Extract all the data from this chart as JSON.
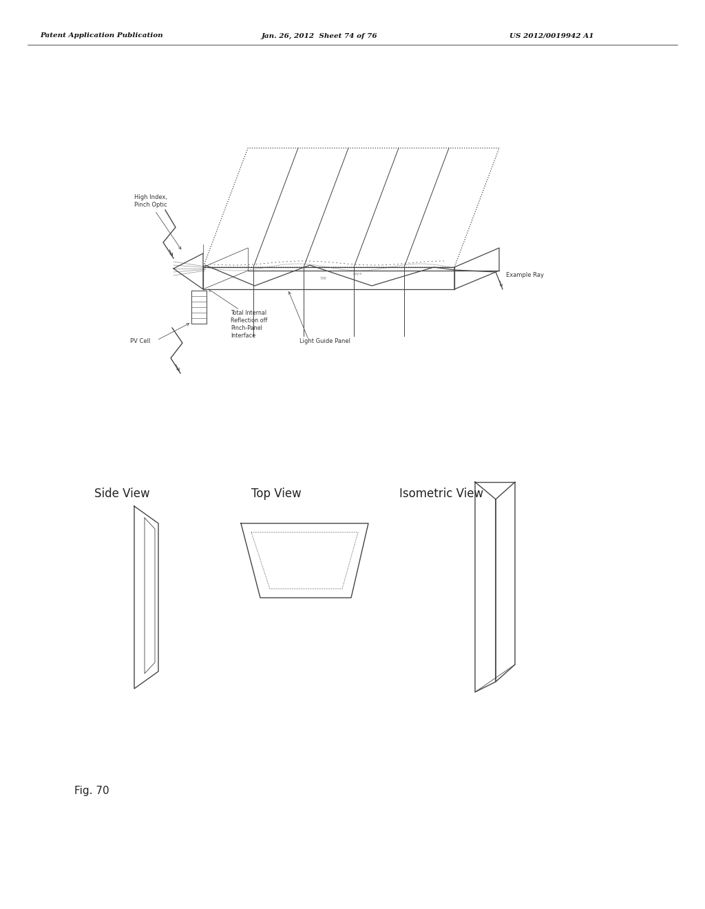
{
  "bg_color": "#ffffff",
  "line_color": "#444444",
  "header_left": "Patent Application Publication",
  "header_mid": "Jan. 26, 2012  Sheet 74 of 76",
  "header_right": "US 2012/0019942 A1",
  "fig_label": "Fig. 70",
  "label_high_index": "High Index,\nPinch Optic",
  "label_pv_cell": "PV Cell",
  "label_total_internal": "Total Internal\nReflection off\nPinch-Panel\nInterface",
  "label_light_guide": "Light Guide Panel",
  "label_example_ray": "Example Ray",
  "label_side_view": "Side View",
  "label_top_view": "Top View",
  "label_isometric_view": "Isometric View"
}
